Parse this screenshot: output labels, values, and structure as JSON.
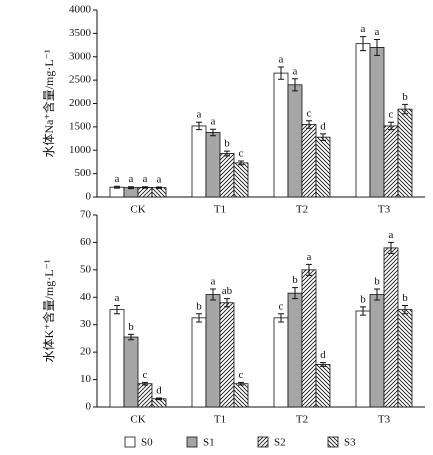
{
  "chart_data": [
    {
      "type": "bar",
      "y_label": "水体Na⁺含量/mg·L⁻¹",
      "categories": [
        "CK",
        "T1",
        "T2",
        "T3"
      ],
      "ylim": [
        0,
        4000
      ],
      "yticks": [
        0,
        500,
        1000,
        1500,
        2000,
        2500,
        3000,
        3500,
        4000
      ],
      "series": [
        {
          "name": "S0",
          "color": "#ffffff",
          "pattern": "none",
          "values": [
            210,
            1520,
            2650,
            3280
          ],
          "errors": [
            20,
            80,
            130,
            150
          ],
          "letters": [
            "a",
            "a",
            "a",
            "a"
          ]
        },
        {
          "name": "S1",
          "color": "#a6a6a6",
          "pattern": "none",
          "values": [
            200,
            1380,
            2400,
            3200
          ],
          "errors": [
            20,
            70,
            130,
            170
          ],
          "letters": [
            "a",
            "a",
            "a",
            "a"
          ]
        },
        {
          "name": "S2",
          "color": "#ffffff",
          "pattern": "hatch-right",
          "values": [
            205,
            930,
            1550,
            1520
          ],
          "errors": [
            15,
            50,
            80,
            80
          ],
          "letters": [
            "a",
            "b",
            "c",
            "c"
          ]
        },
        {
          "name": "S3",
          "color": "#ffffff",
          "pattern": "hatch-left",
          "values": [
            200,
            730,
            1280,
            1880
          ],
          "errors": [
            15,
            40,
            70,
            100
          ],
          "letters": [
            "a",
            "c",
            "d",
            "b"
          ]
        }
      ]
    },
    {
      "type": "bar",
      "y_label": "水体K⁺含量/mg·L⁻¹",
      "categories": [
        "CK",
        "T1",
        "T2",
        "T3"
      ],
      "ylim": [
        0,
        70
      ],
      "yticks": [
        0,
        10,
        20,
        30,
        40,
        50,
        60,
        70
      ],
      "series": [
        {
          "color": "#ffffff",
          "pattern": "none",
          "values": [
            35.5,
            32.5,
            32.5,
            35
          ],
          "errors": [
            1.5,
            1.5,
            1.5,
            1.5
          ],
          "letters": [
            "a",
            "b",
            "c",
            "b"
          ]
        },
        {
          "color": "#a6a6a6",
          "pattern": "none",
          "values": [
            25.5,
            41,
            41.5,
            41
          ],
          "errors": [
            1,
            2,
            2,
            2
          ],
          "letters": [
            "b",
            "a",
            "b",
            "b"
          ]
        },
        {
          "color": "#ffffff",
          "pattern": "hatch-right",
          "values": [
            8.5,
            38,
            50,
            58
          ],
          "errors": [
            0.5,
            1.5,
            2,
            2
          ],
          "letters": [
            "c",
            "ab",
            "a",
            "a"
          ]
        },
        {
          "color": "#ffffff",
          "pattern": "hatch-left",
          "values": [
            3,
            8.5,
            15.5,
            35.5
          ],
          "errors": [
            0.3,
            0.5,
            0.7,
            1.5
          ],
          "letters": [
            "d",
            "c",
            "d",
            "b"
          ]
        }
      ]
    }
  ]
}
